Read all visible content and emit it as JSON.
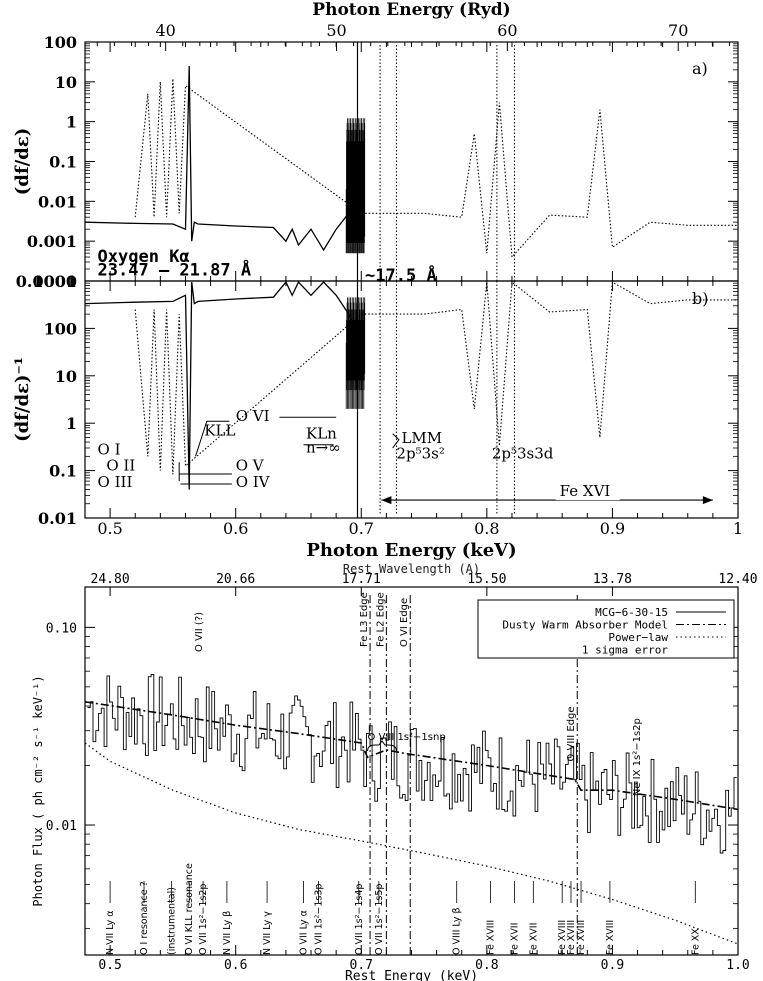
{
  "chart_data": [
    {
      "type": "line",
      "panel": "a",
      "panel_label": "a)",
      "title": "Photon Energy (Ryd)",
      "top_ticks": [
        "40",
        "50",
        "60",
        "70"
      ],
      "top_tick_values": [
        40,
        50,
        60,
        70
      ],
      "xlabel": "",
      "ylabel": "(df/dε)",
      "yscale": "log",
      "ylim": [
        0.0001,
        100
      ],
      "y_ticks": [
        "100",
        "10",
        "1",
        "0.1",
        "0.01",
        "0.001",
        "0.0001"
      ],
      "xlim": [
        0.48,
        1.0
      ],
      "series": [
        {
          "style": "solid",
          "x": [
            0.48,
            0.52,
            0.55,
            0.56,
            0.563,
            0.565,
            0.567,
            0.57,
            0.6,
            0.63,
            0.64,
            0.645,
            0.65,
            0.66,
            0.67,
            0.68,
            0.69,
            0.695,
            0.7
          ],
          "y": [
            0.003,
            0.0028,
            0.0027,
            0.002,
            25,
            0.001,
            0.003,
            0.0027,
            0.0024,
            0.0022,
            0.001,
            0.002,
            0.0008,
            0.002,
            0.0006,
            0.002,
            0.005,
            0.01,
            0.05
          ]
        },
        {
          "style": "dotted",
          "x": [
            0.52,
            0.53,
            0.535,
            0.54,
            0.545,
            0.55,
            0.555,
            0.56,
            0.7,
            0.72,
            0.75,
            0.78,
            0.79,
            0.8,
            0.81,
            0.82,
            0.85,
            0.88,
            0.89,
            0.9,
            0.93,
            0.96,
            1.0
          ],
          "y": [
            0.004,
            5,
            0.004,
            10,
            0.004,
            12,
            0.005,
            8,
            0.005,
            0.005,
            0.005,
            0.004,
            0.5,
            0.0005,
            3,
            0.0004,
            0.0045,
            0.004,
            2,
            0.0007,
            0.003,
            0.0025,
            0.0025
          ]
        }
      ]
    },
    {
      "type": "line",
      "panel": "b",
      "panel_label": "b)",
      "xlabel": "Photon Energy (keV)",
      "ylabel": "(df/dε)⁻¹",
      "yscale": "log",
      "ylim": [
        0.01,
        1000
      ],
      "y_ticks": [
        "1000",
        "100",
        "10",
        "1",
        "0.1",
        "0.01"
      ],
      "xlim": [
        0.48,
        1.0
      ],
      "x_ticks": [
        "0.5",
        "0.6",
        "0.7",
        "0.8",
        "0.9",
        "1"
      ],
      "annotations": [
        {
          "text": "Oxygen Kα",
          "x": 0.49,
          "y": 2500
        },
        {
          "text": "23.47 – 21.87 Å",
          "x": 0.49,
          "y": 1300
        },
        {
          "text": "~17.5 Å",
          "x": 0.703,
          "y": 1000
        },
        {
          "text": "O VI",
          "x": 0.6,
          "y": 1.1
        },
        {
          "text": "KLL",
          "x": 0.575,
          "y": 0.55
        },
        {
          "text": "O I",
          "x": 0.49,
          "y": 0.22
        },
        {
          "text": "O II",
          "x": 0.497,
          "y": 0.1
        },
        {
          "text": "O III",
          "x": 0.49,
          "y": 0.045
        },
        {
          "text": "O V",
          "x": 0.6,
          "y": 0.1
        },
        {
          "text": "O IV",
          "x": 0.6,
          "y": 0.045
        },
        {
          "text": "KLn",
          "x": 0.656,
          "y": 0.48
        },
        {
          "text": "n→∞",
          "x": 0.656,
          "y": 0.24
        },
        {
          "text": "LMM",
          "x": 0.732,
          "y": 0.38
        },
        {
          "text": "2p⁵3s²",
          "x": 0.728,
          "y": 0.18
        },
        {
          "text": "2p⁵3s3d",
          "x": 0.804,
          "y": 0.18
        },
        {
          "text": "Fe XVI",
          "x": 0.858,
          "y": 0.029
        }
      ]
    },
    {
      "type": "line",
      "panel": "bottom",
      "top_axis_label": "Rest Wavelength (A)",
      "top_ticks": [
        "24.80",
        "20.66",
        "17.71",
        "15.50",
        "13.78",
        "12.40"
      ],
      "top_tick_energies": [
        0.5,
        0.6,
        0.7,
        0.8,
        0.9,
        1.0
      ],
      "xlabel": "Rest Energy (keV)",
      "ylabel": "Photon Flux ( ph cm⁻² s⁻¹ keV⁻¹)",
      "yscale": "log",
      "ylim": [
        0.0022,
        0.16
      ],
      "y_ticks": [
        "0.10",
        "0.01"
      ],
      "xlim": [
        0.48,
        1.0
      ],
      "x_ticks": [
        "0.5",
        "0.6",
        "0.7",
        "0.8",
        "0.9",
        "1.0"
      ],
      "legend": {
        "placement": "top-right",
        "entries": [
          "MCG−6-30-15",
          "Dusty Warm Absorber Model",
          "Power−law",
          "1 sigma error"
        ]
      },
      "series": [
        {
          "name": "Dusty Warm Absorber Model",
          "style": "dash-dot",
          "x": [
            0.48,
            0.55,
            0.6,
            0.65,
            0.7,
            0.705,
            0.72,
            0.735,
            0.8,
            0.87,
            0.875,
            0.9,
            0.95,
            1.0
          ],
          "y": [
            0.042,
            0.036,
            0.032,
            0.029,
            0.026,
            0.022,
            0.024,
            0.023,
            0.02,
            0.017,
            0.015,
            0.015,
            0.0135,
            0.012
          ]
        },
        {
          "name": "Power−law",
          "style": "dotted",
          "x": [
            0.48,
            0.5,
            0.55,
            0.6,
            0.65,
            0.7,
            0.75,
            0.8,
            0.85,
            0.9,
            0.95,
            1.0
          ],
          "y": [
            0.026,
            0.021,
            0.015,
            0.0115,
            0.0095,
            0.0083,
            0.0072,
            0.0062,
            0.0052,
            0.0042,
            0.0033,
            0.0025
          ]
        }
      ],
      "edge_labels": [
        "Fe L3 Edge",
        "Fe L2 Edge",
        "O VI Edge",
        "O VIII Edge"
      ],
      "edge_energies": [
        0.707,
        0.72,
        0.739,
        0.872
      ],
      "annotations": [
        {
          "text": "O VII (?)",
          "x": 0.573,
          "y": 0.075,
          "rotate": true
        },
        {
          "text": "O VIII 1s²−1snp",
          "x": 0.705,
          "y": 0.027
        },
        {
          "text": "Ne IX 1s²−1s2p",
          "x": 0.922,
          "y": 0.014,
          "rotate": true
        }
      ],
      "line_ids": [
        {
          "text": "N VII Ly α",
          "x": 0.5
        },
        {
          "text": "O I resonance ?",
          "x": 0.527
        },
        {
          "text": "(instrumental)",
          "x": 0.549
        },
        {
          "text": "O VI KLL resonance",
          "x": 0.563
        },
        {
          "text": "O VII 1s²−1s2p",
          "x": 0.574
        },
        {
          "text": "N VII Ly β",
          "x": 0.593
        },
        {
          "text": "N VII Ly γ",
          "x": 0.625
        },
        {
          "text": "O VII Ly α",
          "x": 0.654
        },
        {
          "text": "O VII 1s²−1s3p",
          "x": 0.666
        },
        {
          "text": "O VII 1s²−1s4p",
          "x": 0.698
        },
        {
          "text": "O VII 1s²−1s5p",
          "x": 0.714
        },
        {
          "text": "O VIII Ly β",
          "x": 0.776
        },
        {
          "text": "Fe XVIII",
          "x": 0.803
        },
        {
          "text": "Fe XVII",
          "x": 0.822
        },
        {
          "text": "Fe XVII",
          "x": 0.837
        },
        {
          "text": "Fe XVIII",
          "x": 0.86
        },
        {
          "text": "Fe XVIII",
          "x": 0.867
        },
        {
          "text": "Fe XVIII",
          "x": 0.875
        },
        {
          "text": "Fe XVIII",
          "x": 0.898
        },
        {
          "text": "Fe XX",
          "x": 0.966
        }
      ]
    }
  ]
}
